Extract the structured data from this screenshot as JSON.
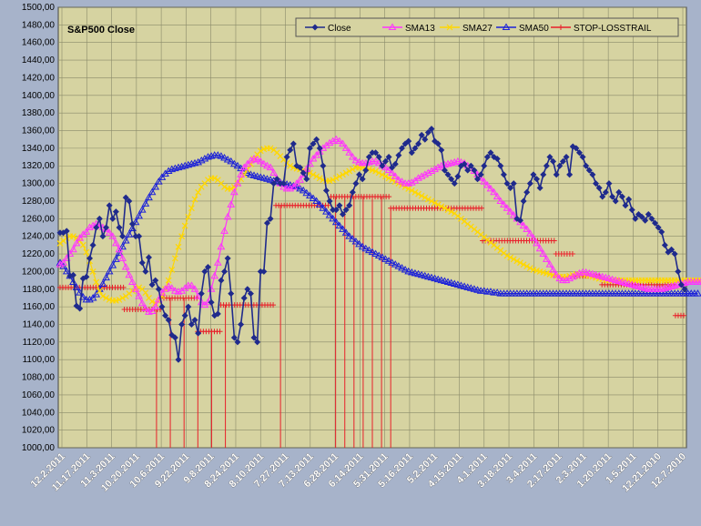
{
  "chart_data": {
    "type": "line",
    "title": "S&P500 Close",
    "ylim": [
      1000,
      1500
    ],
    "ystep": 20,
    "y_tick_labels": [
      "1000,00",
      "1020,00",
      "1040,00",
      "1060,00",
      "1080,00",
      "1100,00",
      "1120,00",
      "1140,00",
      "1160,00",
      "1180,00",
      "1200,00",
      "1220,00",
      "1240,00",
      "1260,00",
      "1280,00",
      "1300,00",
      "1320,00",
      "1340,00",
      "1360,00",
      "1380,00",
      "1400,00",
      "1420,00",
      "1440,00",
      "1460,00",
      "1480,00",
      "1500,00"
    ],
    "x_tick_labels": [
      "12.2.2011",
      "11.17.2011",
      "11.3.2011",
      "10.20.2011",
      "10.6.2011",
      "9.22.2011",
      "9.8.2011",
      "8.24.2011",
      "8.10.2011",
      "7.27.2011",
      "7.13.2011",
      "6.28.2011",
      "6.14.2011",
      "5.31.2011",
      "5.16.2011",
      "5.2.2011",
      "4.15.2011",
      "4.1.2011",
      "3.18.2011",
      "3.4.2011",
      "2.17.2011",
      "2.3.2011",
      "1.20.2011",
      "1.5.2011",
      "12.21.2010",
      "12.7.2010"
    ],
    "x_axis_reversed": true,
    "grid": true,
    "legend_position": "top-right",
    "series": [
      {
        "name": "Close",
        "color": "#1f2a8c",
        "marker": "diamond",
        "values": [
          1244,
          1244,
          1246,
          1195,
          1196,
          1161,
          1158,
          1192,
          1194,
          1215,
          1230,
          1250,
          1260,
          1240,
          1250,
          1275,
          1260,
          1268,
          1250,
          1240,
          1284,
          1280,
          1254,
          1240,
          1240,
          1210,
          1200,
          1216,
          1185,
          1190,
          1180,
          1160,
          1150,
          1145,
          1128,
          1125,
          1100,
          1140,
          1150,
          1160,
          1140,
          1145,
          1130,
          1175,
          1200,
          1205,
          1165,
          1150,
          1152,
          1190,
          1200,
          1215,
          1175,
          1125,
          1120,
          1140,
          1170,
          1180,
          1175,
          1125,
          1120,
          1200,
          1200,
          1255,
          1260,
          1300,
          1305,
          1300,
          1300,
          1330,
          1338,
          1345,
          1320,
          1318,
          1312,
          1305,
          1340,
          1345,
          1350,
          1340,
          1320,
          1292,
          1280,
          1270,
          1270,
          1275,
          1265,
          1270,
          1275,
          1290,
          1300,
          1310,
          1305,
          1315,
          1330,
          1335,
          1335,
          1330,
          1320,
          1325,
          1330,
          1318,
          1322,
          1332,
          1340,
          1345,
          1348,
          1335,
          1340,
          1345,
          1355,
          1350,
          1358,
          1362,
          1348,
          1345,
          1338,
          1315,
          1310,
          1305,
          1300,
          1308,
          1320,
          1322,
          1315,
          1320,
          1315,
          1305,
          1310,
          1320,
          1330,
          1335,
          1330,
          1328,
          1320,
          1310,
          1300,
          1295,
          1300,
          1260,
          1258,
          1280,
          1290,
          1300,
          1310,
          1305,
          1295,
          1310,
          1320,
          1330,
          1325,
          1310,
          1320,
          1325,
          1330,
          1310,
          1342,
          1340,
          1335,
          1330,
          1320,
          1315,
          1310,
          1300,
          1295,
          1285,
          1290,
          1300,
          1285,
          1280,
          1290,
          1285,
          1275,
          1282,
          1270,
          1260,
          1265,
          1262,
          1258,
          1265,
          1260,
          1255,
          1250,
          1245,
          1230,
          1222,
          1225,
          1220,
          1200,
          1185,
          1180
        ]
      },
      {
        "name": "SMA13",
        "color": "#ff33ff",
        "marker": "triangle",
        "values": [
          1208,
          1210,
          1215,
          1220,
          1225,
          1232,
          1238,
          1242,
          1245,
          1250,
          1252,
          1254,
          1253,
          1250,
          1248,
          1244,
          1240,
          1232,
          1225,
          1215,
          1205,
          1196,
          1188,
          1180,
          1172,
          1164,
          1158,
          1154,
          1155,
          1160,
          1168,
          1176,
          1180,
          1183,
          1181,
          1178,
          1177,
          1178,
          1181,
          1184,
          1184,
          1180,
          1172,
          1165,
          1162,
          1165,
          1180,
          1195,
          1210,
          1228,
          1246,
          1262,
          1276,
          1290,
          1300,
          1310,
          1318,
          1322,
          1326,
          1328,
          1327,
          1325,
          1322,
          1320,
          1318,
          1312,
          1305,
          1300,
          1296,
          1294,
          1294,
          1296,
          1300,
          1304,
          1310,
          1316,
          1322,
          1328,
          1332,
          1336,
          1340,
          1343,
          1346,
          1348,
          1350,
          1348,
          1345,
          1340,
          1335,
          1330,
          1326,
          1324,
          1323,
          1323,
          1324,
          1325,
          1325,
          1323,
          1320,
          1318,
          1315,
          1312,
          1308,
          1304,
          1302,
          1300,
          1300,
          1301,
          1303,
          1306,
          1308,
          1310,
          1312,
          1314,
          1316,
          1318,
          1320,
          1321,
          1322,
          1323,
          1324,
          1325,
          1324,
          1323,
          1320,
          1317,
          1314,
          1310,
          1306,
          1302,
          1298,
          1294,
          1290,
          1285,
          1280,
          1276,
          1272,
          1268,
          1264,
          1260,
          1256,
          1252,
          1248,
          1243,
          1238,
          1232,
          1226,
          1220,
          1214,
          1208,
          1202,
          1196,
          1192,
          1190,
          1190,
          1192,
          1194,
          1196,
          1198,
          1199,
          1199,
          1198,
          1197,
          1196,
          1195,
          1194,
          1193,
          1192,
          1191,
          1190,
          1189,
          1188,
          1187,
          1186,
          1185,
          1184,
          1183,
          1182,
          1181,
          1180,
          1180,
          1180,
          1180,
          1180,
          1181,
          1182,
          1183,
          1184,
          1185,
          1186,
          1187,
          1188,
          1188,
          1188,
          1188,
          1188,
          1188,
          1188,
          1188
        ]
      },
      {
        "name": "SMA27",
        "color": "#ffd700",
        "marker": "x",
        "values": [
          1232,
          1235,
          1238,
          1240,
          1240,
          1238,
          1235,
          1230,
          1222,
          1212,
          1200,
          1188,
          1178,
          1172,
          1170,
          1168,
          1167,
          1167,
          1168,
          1170,
          1172,
          1175,
          1178,
          1180,
          1182,
          1180,
          1176,
          1170,
          1166,
          1164,
          1166,
          1172,
          1180,
          1190,
          1202,
          1215,
          1228,
          1240,
          1252,
          1262,
          1272,
          1282,
          1290,
          1296,
          1300,
          1304,
          1306,
          1306,
          1304,
          1300,
          1296,
          1294,
          1294,
          1296,
          1300,
          1305,
          1310,
          1316,
          1322,
          1328,
          1333,
          1337,
          1339,
          1340,
          1340,
          1338,
          1335,
          1331,
          1327,
          1323,
          1320,
          1318,
          1317,
          1316,
          1315,
          1314,
          1312,
          1310,
          1308,
          1306,
          1304,
          1303,
          1303,
          1304,
          1306,
          1308,
          1310,
          1312,
          1314,
          1316,
          1318,
          1318,
          1318,
          1317,
          1316,
          1315,
          1314,
          1312,
          1310,
          1308,
          1306,
          1304,
          1302,
          1300,
          1298,
          1296,
          1294,
          1292,
          1290,
          1288,
          1286,
          1284,
          1282,
          1280,
          1278,
          1276,
          1274,
          1272,
          1270,
          1268,
          1266,
          1263,
          1260,
          1257,
          1254,
          1251,
          1248,
          1245,
          1242,
          1239,
          1236,
          1233,
          1230,
          1227,
          1224,
          1221,
          1218,
          1216,
          1214,
          1212,
          1210,
          1208,
          1206,
          1204,
          1202,
          1201,
          1200,
          1199,
          1198,
          1197,
          1196,
          1195,
          1194,
          1194,
          1194,
          1195,
          1196,
          1197,
          1197,
          1197,
          1196,
          1195,
          1194,
          1193,
          1192,
          1191,
          1190,
          1190,
          1190,
          1190,
          1190,
          1190,
          1190,
          1190,
          1190,
          1190,
          1190,
          1190,
          1190,
          1190,
          1190,
          1190,
          1190,
          1190,
          1190,
          1190,
          1190,
          1190,
          1190,
          1190,
          1190,
          1190,
          1190,
          1190,
          1190,
          1190,
          1190,
          1190
        ]
      },
      {
        "name": "SMA50",
        "color": "#1c22d8",
        "marker": "triangle",
        "values": [
          1210,
          1206,
          1200,
          1195,
          1188,
          1182,
          1176,
          1171,
          1168,
          1168,
          1170,
          1174,
          1180,
          1186,
          1193,
          1200,
          1207,
          1214,
          1221,
          1228,
          1235,
          1242,
          1249,
          1256,
          1263,
          1270,
          1277,
          1284,
          1290,
          1296,
          1302,
          1307,
          1311,
          1314,
          1316,
          1317,
          1318,
          1319,
          1320,
          1321,
          1322,
          1323,
          1324,
          1326,
          1328,
          1330,
          1331,
          1332,
          1332,
          1331,
          1329,
          1327,
          1325,
          1322,
          1320,
          1317,
          1314,
          1312,
          1310,
          1309,
          1308,
          1307,
          1306,
          1305,
          1304,
          1303,
          1302,
          1301,
          1300,
          1299,
          1298,
          1297,
          1296,
          1294,
          1292,
          1289,
          1286,
          1283,
          1280,
          1276,
          1272,
          1268,
          1264,
          1260,
          1256,
          1252,
          1248,
          1244,
          1240,
          1237,
          1234,
          1231,
          1228,
          1226,
          1224,
          1222,
          1220,
          1218,
          1216,
          1214,
          1212,
          1210,
          1208,
          1206,
          1204,
          1202,
          1200,
          1199,
          1198,
          1197,
          1196,
          1195,
          1194,
          1193,
          1192,
          1191,
          1190,
          1189,
          1188,
          1187,
          1186,
          1185,
          1184,
          1183,
          1182,
          1181,
          1180,
          1179,
          1178,
          1178,
          1177,
          1177,
          1176,
          1176,
          1175,
          1175,
          1175,
          1175,
          1175,
          1175,
          1175,
          1175,
          1175,
          1175,
          1175,
          1175,
          1175,
          1175,
          1175,
          1175,
          1175,
          1175,
          1175,
          1175,
          1175,
          1175,
          1175,
          1175,
          1175,
          1175,
          1175,
          1175,
          1175,
          1175,
          1175,
          1175,
          1175,
          1175,
          1175,
          1175,
          1175,
          1175,
          1175,
          1175,
          1175,
          1175,
          1175,
          1175,
          1175,
          1175,
          1175,
          1175,
          1175,
          1175,
          1175,
          1175,
          1175,
          1175,
          1175,
          1175,
          1175,
          1175,
          1175,
          1175,
          1175
        ]
      },
      {
        "name": "STOP-LOSSTRAIL",
        "color": "#e8202a",
        "marker": "plus",
        "levels": [
          {
            "from": 0,
            "to": 70,
            "value": 1182
          },
          {
            "from": 70,
            "to": 110,
            "value": 1157
          },
          {
            "from": 110,
            "to": 150,
            "value": 1170
          },
          {
            "from": 150,
            "to": 175,
            "value": 1132
          },
          {
            "from": 175,
            "to": 235,
            "value": 1162
          },
          {
            "from": 235,
            "to": 295,
            "value": 1275
          },
          {
            "from": 295,
            "to": 360,
            "value": 1285
          },
          {
            "from": 360,
            "to": 460,
            "value": 1272
          },
          {
            "from": 460,
            "to": 540,
            "value": 1235
          },
          {
            "from": 540,
            "to": 560,
            "value": 1220
          },
          {
            "from": 560,
            "to": 590,
            "value": 1195
          },
          {
            "from": 590,
            "to": 670,
            "value": 1185
          },
          {
            "from": 670,
            "to": 680,
            "value": 1150
          }
        ],
        "drops": [
          105,
          120,
          135,
          150,
          165,
          180,
          240,
          300,
          310,
          320,
          330,
          340,
          350,
          360
        ]
      }
    ]
  }
}
